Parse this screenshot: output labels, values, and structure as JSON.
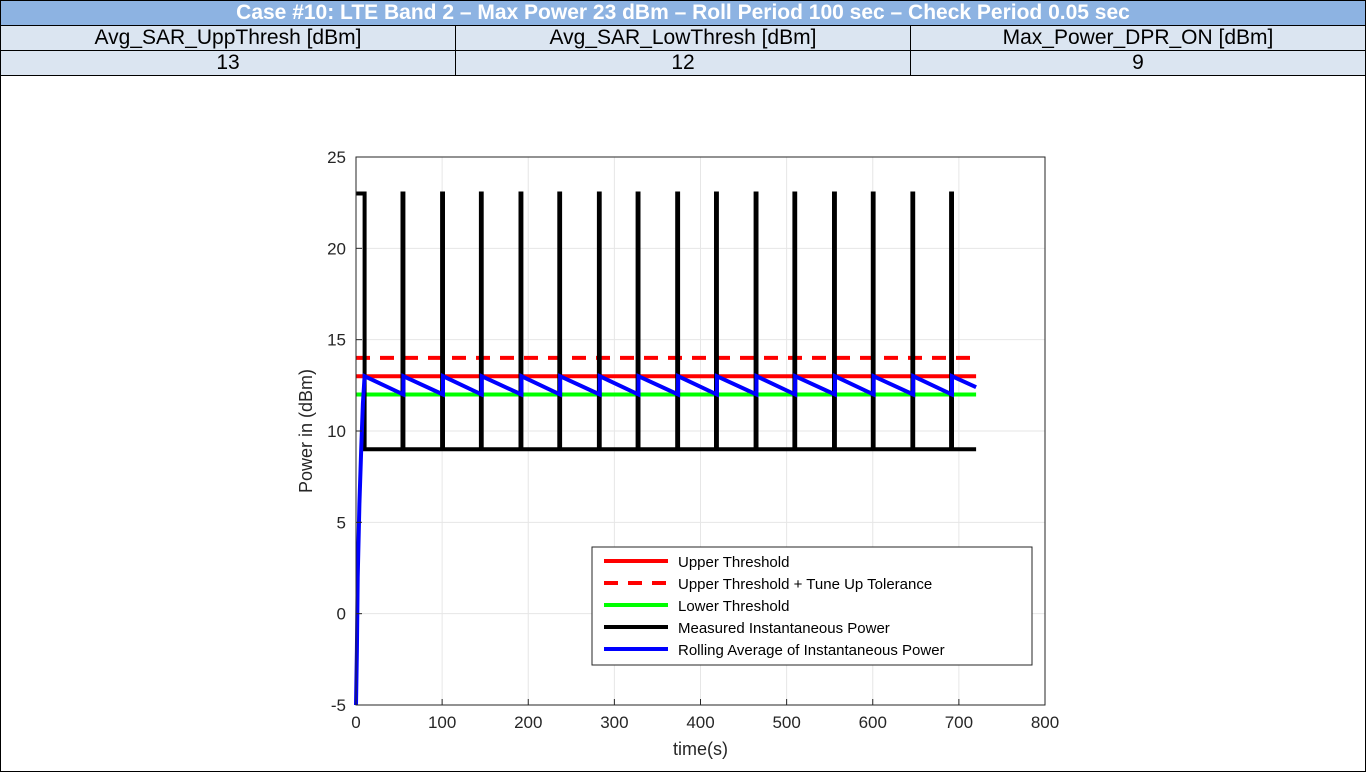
{
  "header": {
    "title": "Case #10: LTE Band 2 – Max Power 23 dBm – Roll Period 100 sec – Check Period 0.05 sec",
    "columns": [
      "Avg_SAR_UppThresh [dBm]",
      "Avg_SAR_LowThresh [dBm]",
      "Max_Power_DPR_ON [dBm]"
    ],
    "values": [
      "13",
      "12",
      "9"
    ]
  },
  "chart_data": {
    "type": "line",
    "title": "",
    "xlabel": "time(s)",
    "ylabel": "Power in (dBm)",
    "xlim": [
      0,
      800
    ],
    "ylim": [
      -5,
      25
    ],
    "xticks": [
      0,
      100,
      200,
      300,
      400,
      500,
      600,
      700,
      800
    ],
    "yticks": [
      -5,
      0,
      5,
      10,
      15,
      20,
      25
    ],
    "grid": true,
    "legend_position": "bottom-right",
    "series": [
      {
        "name": "Upper Threshold",
        "color": "#ff0000",
        "style": "solid",
        "x": [
          0,
          720
        ],
        "y": [
          13,
          13
        ]
      },
      {
        "name": "Upper Threshold + Tune Up Tolerance",
        "color": "#ff0000",
        "style": "dashed",
        "x": [
          0,
          720
        ],
        "y": [
          14,
          14
        ]
      },
      {
        "name": "Lower Threshold",
        "color": "#00ff00",
        "style": "solid",
        "x": [
          0,
          720
        ],
        "y": [
          12,
          12
        ]
      },
      {
        "name": "Measured Instantaneous Power",
        "color": "#000000",
        "style": "solid",
        "x": [
          0,
          10,
          10,
          54,
          54,
          55,
          55,
          100,
          100,
          101,
          101,
          145,
          145,
          146,
          146,
          191,
          191,
          192,
          192,
          236,
          236,
          237,
          237,
          282,
          282,
          283,
          283,
          327,
          327,
          328,
          328,
          373,
          373,
          374,
          374,
          418,
          418,
          419,
          419,
          464,
          464,
          465,
          465,
          509,
          509,
          510,
          510,
          555,
          555,
          556,
          556,
          600,
          600,
          601,
          601,
          646,
          646,
          647,
          647,
          691,
          691,
          692,
          692,
          720
        ],
        "y": [
          23,
          23,
          9,
          9,
          23,
          23,
          9,
          9,
          23,
          23,
          9,
          9,
          23,
          23,
          9,
          9,
          23,
          23,
          9,
          9,
          23,
          23,
          9,
          9,
          23,
          23,
          9,
          9,
          23,
          23,
          9,
          9,
          23,
          23,
          9,
          9,
          23,
          23,
          9,
          9,
          23,
          23,
          9,
          9,
          23,
          23,
          9,
          9,
          23,
          23,
          9,
          9,
          23,
          23,
          9,
          9,
          23,
          23,
          9,
          9,
          23,
          23,
          9,
          9
        ]
      },
      {
        "name": "Rolling Average of Instantaneous Power",
        "color": "#0000ff",
        "style": "solid",
        "x": [
          0,
          1,
          2,
          4,
          6,
          8,
          10,
          55,
          55,
          101,
          101,
          146,
          146,
          192,
          192,
          237,
          237,
          283,
          283,
          328,
          328,
          374,
          374,
          419,
          419,
          465,
          465,
          510,
          510,
          556,
          556,
          601,
          601,
          647,
          647,
          692,
          692,
          720
        ],
        "y": [
          -5,
          -2,
          2,
          6,
          9,
          11.5,
          13,
          12,
          13,
          12,
          13,
          12,
          13,
          12,
          13,
          12,
          13,
          12,
          13,
          12,
          13,
          12,
          13,
          12,
          13,
          12,
          13,
          12,
          13,
          12,
          13,
          12,
          13,
          12,
          13,
          12,
          13,
          12.4
        ]
      }
    ]
  }
}
